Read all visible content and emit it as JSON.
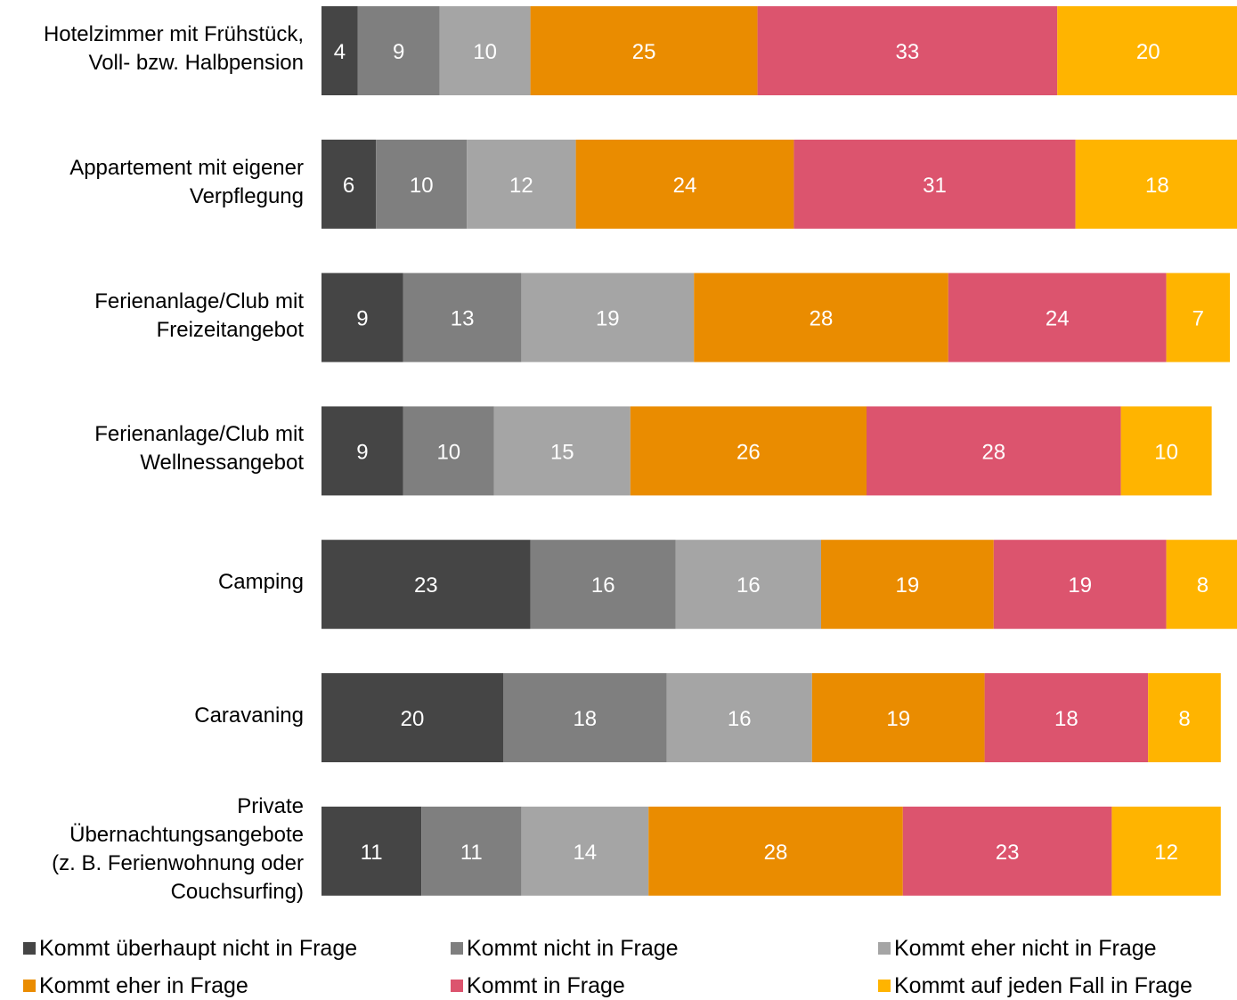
{
  "chart_data": {
    "type": "bar",
    "orientation": "horizontal",
    "stacked": true,
    "title": "",
    "xlabel": "",
    "ylabel": "",
    "xlim": [
      0,
      100
    ],
    "grid": false,
    "legend_position": "bottom",
    "categories": [
      "Hotelzimmer mit Frühstück, Voll- bzw. Halbpension",
      "Appartement mit eigener Verpflegung",
      "Ferienanlage/Club mit Freizeitangebot",
      "Ferienanlage/Club mit Wellnessangebot",
      "Camping",
      "Caravaning",
      "Private Übernachtungsangebote (z. B. Ferienwohnung oder Couchsurfing)"
    ],
    "series": [
      {
        "name": "Kommt überhaupt nicht in Frage",
        "color": "#454545",
        "values": [
          4,
          6,
          9,
          9,
          23,
          20,
          11
        ]
      },
      {
        "name": "Kommt nicht in Frage",
        "color": "#7f7f7f",
        "values": [
          9,
          10,
          13,
          10,
          16,
          18,
          11
        ]
      },
      {
        "name": "Kommt eher nicht in Frage",
        "color": "#a5a5a5",
        "values": [
          10,
          12,
          19,
          15,
          16,
          16,
          14
        ]
      },
      {
        "name": "Kommt eher in Frage",
        "color": "#ea8c00",
        "values": [
          25,
          24,
          28,
          26,
          19,
          19,
          28
        ]
      },
      {
        "name": "Kommt in Frage",
        "color": "#dc546e",
        "values": [
          33,
          31,
          24,
          28,
          19,
          18,
          23
        ]
      },
      {
        "name": "Kommt auf jeden Fall in Frage",
        "color": "#ffb400",
        "values": [
          20,
          18,
          7,
          10,
          8,
          8,
          12
        ]
      }
    ]
  }
}
